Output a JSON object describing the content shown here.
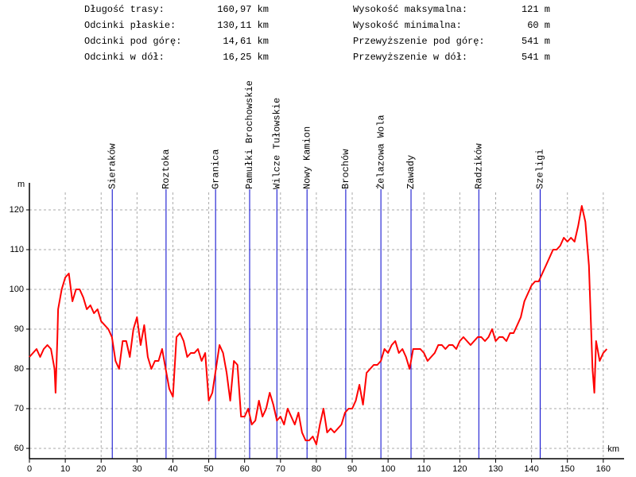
{
  "chart_data": {
    "type": "line",
    "stats": [
      {
        "label": "Długość trasy:",
        "value": "160,97 km"
      },
      {
        "label": "Odcinki płaskie:",
        "value": "130,11 km"
      },
      {
        "label": "Odcinki pod górę:",
        "value": "14,61 km"
      },
      {
        "label": "Odcinki w dół:",
        "value": "16,25 km"
      },
      {
        "label": "Wysokość maksymalna:",
        "value": "121 m"
      },
      {
        "label": "Wysokość minimalna:",
        "value": "60 m"
      },
      {
        "label": "Przewyższenie pod górę:",
        "value": "541 m"
      },
      {
        "label": "Przewyższenie w dół:",
        "value": "541 m"
      }
    ],
    "y_label": "m",
    "x_label": "km",
    "xlim": [
      0,
      165.8
    ],
    "ylim": [
      57.4,
      126.8
    ],
    "xticks": [
      0,
      10,
      20,
      30,
      40,
      50,
      60,
      70,
      80,
      90,
      100,
      110,
      120,
      130,
      140,
      150,
      160
    ],
    "yticks": [
      60,
      70,
      80,
      90,
      100,
      110,
      120
    ],
    "grid": true,
    "marker_color": "#0000cc",
    "markers": [
      {
        "label": "Sieraków",
        "x": 23.1
      },
      {
        "label": "Roztoka",
        "x": 38.1
      },
      {
        "label": "Granica",
        "x": 51.9
      },
      {
        "label": "Pamułki Brochowskie",
        "x": 61.4
      },
      {
        "label": "Wilcze Tułowskie",
        "x": 69.0
      },
      {
        "label": "Nowy Kamion",
        "x": 77.4
      },
      {
        "label": "Brochów",
        "x": 88.2
      },
      {
        "label": "Żelazowa Wola",
        "x": 98.0
      },
      {
        "label": "Zawady",
        "x": 106.4
      },
      {
        "label": "Radzików",
        "x": 125.3
      },
      {
        "label": "Szeligi",
        "x": 142.4
      }
    ],
    "x": [
      0,
      1,
      2,
      3,
      4,
      5,
      6,
      7,
      7.3,
      7.8,
      8,
      9,
      10,
      11,
      12,
      13,
      14,
      15,
      16,
      17,
      18,
      19,
      20,
      21,
      22,
      23,
      24,
      25,
      26,
      27,
      28,
      29,
      30,
      31,
      32,
      33,
      34,
      35,
      36,
      37,
      38,
      39,
      40,
      41,
      42,
      43,
      44,
      45,
      46,
      47,
      48,
      49,
      50,
      51,
      52,
      53,
      54,
      55,
      56,
      57,
      58,
      59,
      60,
      61,
      62,
      63,
      64,
      65,
      66,
      67,
      68,
      69,
      70,
      71,
      72,
      73,
      74,
      75,
      76,
      77,
      78,
      79,
      80,
      81,
      82,
      83,
      84,
      85,
      86,
      87,
      88,
      89,
      90,
      91,
      92,
      93,
      94,
      95,
      96,
      97,
      98,
      99,
      100,
      101,
      102,
      103,
      104,
      105,
      106,
      107,
      108,
      109,
      110,
      111,
      112,
      113,
      114,
      115,
      116,
      117,
      118,
      119,
      120,
      121,
      122,
      123,
      124,
      125,
      126,
      127,
      128,
      129,
      130,
      131,
      132,
      133,
      134,
      135,
      136,
      137,
      138,
      139,
      140,
      141,
      142,
      143,
      144,
      145,
      146,
      147,
      148,
      149,
      150,
      151,
      152,
      153,
      154,
      155,
      156,
      157,
      157.5,
      158,
      159,
      160,
      161
    ],
    "series": [
      {
        "name": "profile",
        "color": "#ff0000",
        "values": [
          83,
          84,
          85,
          83,
          85,
          86,
          85,
          80,
          74,
          88,
          95,
          100,
          103,
          104,
          97,
          100,
          100,
          98,
          95,
          96,
          94,
          95,
          92,
          91,
          90,
          88,
          82,
          80,
          87,
          87,
          83,
          90,
          93,
          86,
          91,
          83,
          80,
          82,
          82,
          85,
          80,
          75,
          73,
          88,
          89,
          87,
          83,
          84,
          84,
          85,
          82,
          84,
          72,
          74,
          80,
          86,
          84,
          79,
          72,
          82,
          81,
          68,
          68,
          70,
          66,
          67,
          72,
          68,
          70,
          74,
          71,
          67,
          68,
          66,
          70,
          68,
          66,
          69,
          64,
          62,
          62,
          63,
          61,
          66,
          70,
          64,
          65,
          64,
          65,
          66,
          69,
          70,
          70,
          72,
          76,
          71,
          79,
          80,
          81,
          81,
          82,
          85,
          84,
          86,
          87,
          84,
          85,
          83,
          80,
          85,
          85,
          85,
          84,
          82,
          83,
          84,
          86,
          86,
          85,
          86,
          86,
          85,
          87,
          88,
          87,
          86,
          87,
          88,
          88,
          87,
          88,
          90,
          87,
          88,
          88,
          87,
          89,
          89,
          91,
          93,
          97,
          99,
          101,
          102,
          102,
          104,
          106,
          108,
          110,
          110,
          111,
          113,
          112,
          113,
          112,
          116,
          121,
          117,
          106,
          80,
          74,
          87,
          82,
          84,
          85
        ]
      }
    ]
  }
}
